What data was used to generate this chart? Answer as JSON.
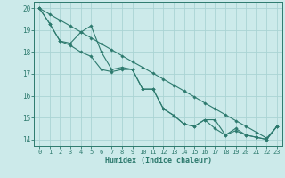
{
  "xlabel": "Humidex (Indice chaleur)",
  "xlim": [
    -0.5,
    23.5
  ],
  "ylim": [
    13.7,
    20.3
  ],
  "xticks": [
    0,
    1,
    2,
    3,
    4,
    5,
    6,
    7,
    8,
    9,
    10,
    11,
    12,
    13,
    14,
    15,
    16,
    17,
    18,
    19,
    20,
    21,
    22,
    23
  ],
  "yticks": [
    14,
    15,
    16,
    17,
    18,
    19,
    20
  ],
  "bg_color": "#cceaea",
  "grid_color": "#aad4d4",
  "line_color": "#2d7a6e",
  "lines": [
    {
      "x": [
        0,
        1,
        2,
        3,
        4,
        5,
        6,
        7,
        8,
        9,
        10,
        11,
        12,
        13,
        14,
        15,
        16,
        17,
        18,
        19,
        20,
        21,
        22,
        23
      ],
      "y": [
        20.0,
        19.3,
        18.5,
        18.4,
        18.9,
        19.2,
        18.0,
        17.2,
        17.3,
        17.2,
        16.3,
        16.3,
        15.4,
        15.1,
        14.7,
        14.6,
        14.9,
        14.9,
        14.2,
        14.5,
        14.2,
        14.1,
        14.0,
        14.6
      ]
    },
    {
      "x": [
        0,
        1,
        2,
        3,
        4,
        5,
        6,
        7,
        8,
        9,
        10,
        11,
        12,
        13,
        14,
        15,
        16,
        17,
        18,
        19,
        20,
        21,
        22,
        23
      ],
      "y": [
        20.0,
        19.3,
        18.5,
        18.3,
        18.0,
        17.8,
        17.2,
        17.1,
        17.2,
        17.2,
        16.3,
        16.3,
        15.4,
        15.1,
        14.7,
        14.6,
        14.9,
        14.5,
        14.2,
        14.4,
        14.2,
        14.1,
        14.0,
        14.6
      ]
    },
    {
      "x": [
        0,
        1,
        2,
        3,
        4,
        5,
        6,
        7,
        8,
        9,
        10,
        11,
        12,
        13,
        14,
        15,
        16,
        17,
        18,
        19,
        20,
        21,
        22,
        23
      ],
      "y": [
        20.0,
        19.73,
        19.46,
        19.19,
        18.92,
        18.65,
        18.37,
        18.1,
        17.83,
        17.56,
        17.3,
        17.03,
        16.76,
        16.49,
        16.22,
        15.95,
        15.67,
        15.4,
        15.13,
        14.86,
        14.6,
        14.33,
        14.06,
        14.6
      ]
    }
  ]
}
